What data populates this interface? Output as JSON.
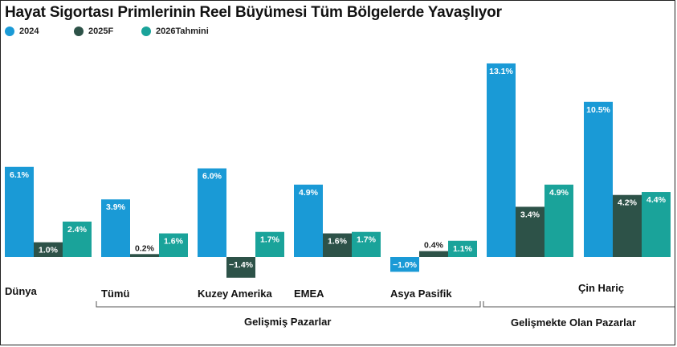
{
  "title": "Hayat Sigortası Primlerinin Reel Büyümesi Tüm Bölgelerde Yavaşlıyor",
  "legend": [
    {
      "label": "2024",
      "color": "#1a9ad6"
    },
    {
      "label": "2025F",
      "color": "#2d5248"
    },
    {
      "label": "2026Tahmini",
      "color": "#1aa39a"
    }
  ],
  "chart_data": {
    "type": "bar",
    "title": "Hayat Sigortası Primlerinin Reel Büyümesi Tüm Bölgelerde Yavaşlıyor",
    "categories": [
      "Dünya",
      "Tümü",
      "Kuzey Amerika",
      "EMEA",
      "Asya Pasifik",
      "Çin Hariç"
    ],
    "series": [
      {
        "name": "2024",
        "color": "#1a9ad6",
        "values": [
          6.1,
          3.9,
          6.0,
          4.9,
          -1.0,
          13.1
        ]
      },
      {
        "name": "2025F",
        "color": "#2d5248",
        "values": [
          1.0,
          0.2,
          -1.4,
          1.6,
          0.4,
          3.4
        ]
      },
      {
        "name": "2026Tahmini",
        "color": "#1aa39a",
        "values": [
          2.4,
          1.6,
          1.7,
          1.7,
          1.1,
          4.9
        ]
      }
    ],
    "extra_group": {
      "category": "Çin Hariç",
      "values": [
        10.5,
        4.2,
        4.4
      ]
    },
    "value_labels": [
      [
        "6.1%",
        "1.0%",
        "2.4%"
      ],
      [
        "3.9%",
        "0.2%",
        "1.6%"
      ],
      [
        "6.0%",
        "−1.4%",
        "1.7%"
      ],
      [
        "4.9%",
        "1.6%",
        "1.7%"
      ],
      [
        "−1.0%",
        "0.4%",
        "1.1%"
      ],
      [
        "13.1%",
        "3.4%",
        "4.9%"
      ],
      [
        "10.5%",
        "4.2%",
        "4.4%"
      ]
    ],
    "groups": [
      {
        "label": "Gelişmiş Pazarlar",
        "categories": [
          "Tümü",
          "Kuzey Amerika",
          "EMEA",
          "Asya Pasifik"
        ]
      },
      {
        "label": "Gelişmekte Olan Pazarlar",
        "categories": [
          "Çin Hariç"
        ]
      }
    ],
    "ylim": [
      -1.5,
      13.5
    ],
    "grid": false,
    "legend_position": "top-left"
  }
}
